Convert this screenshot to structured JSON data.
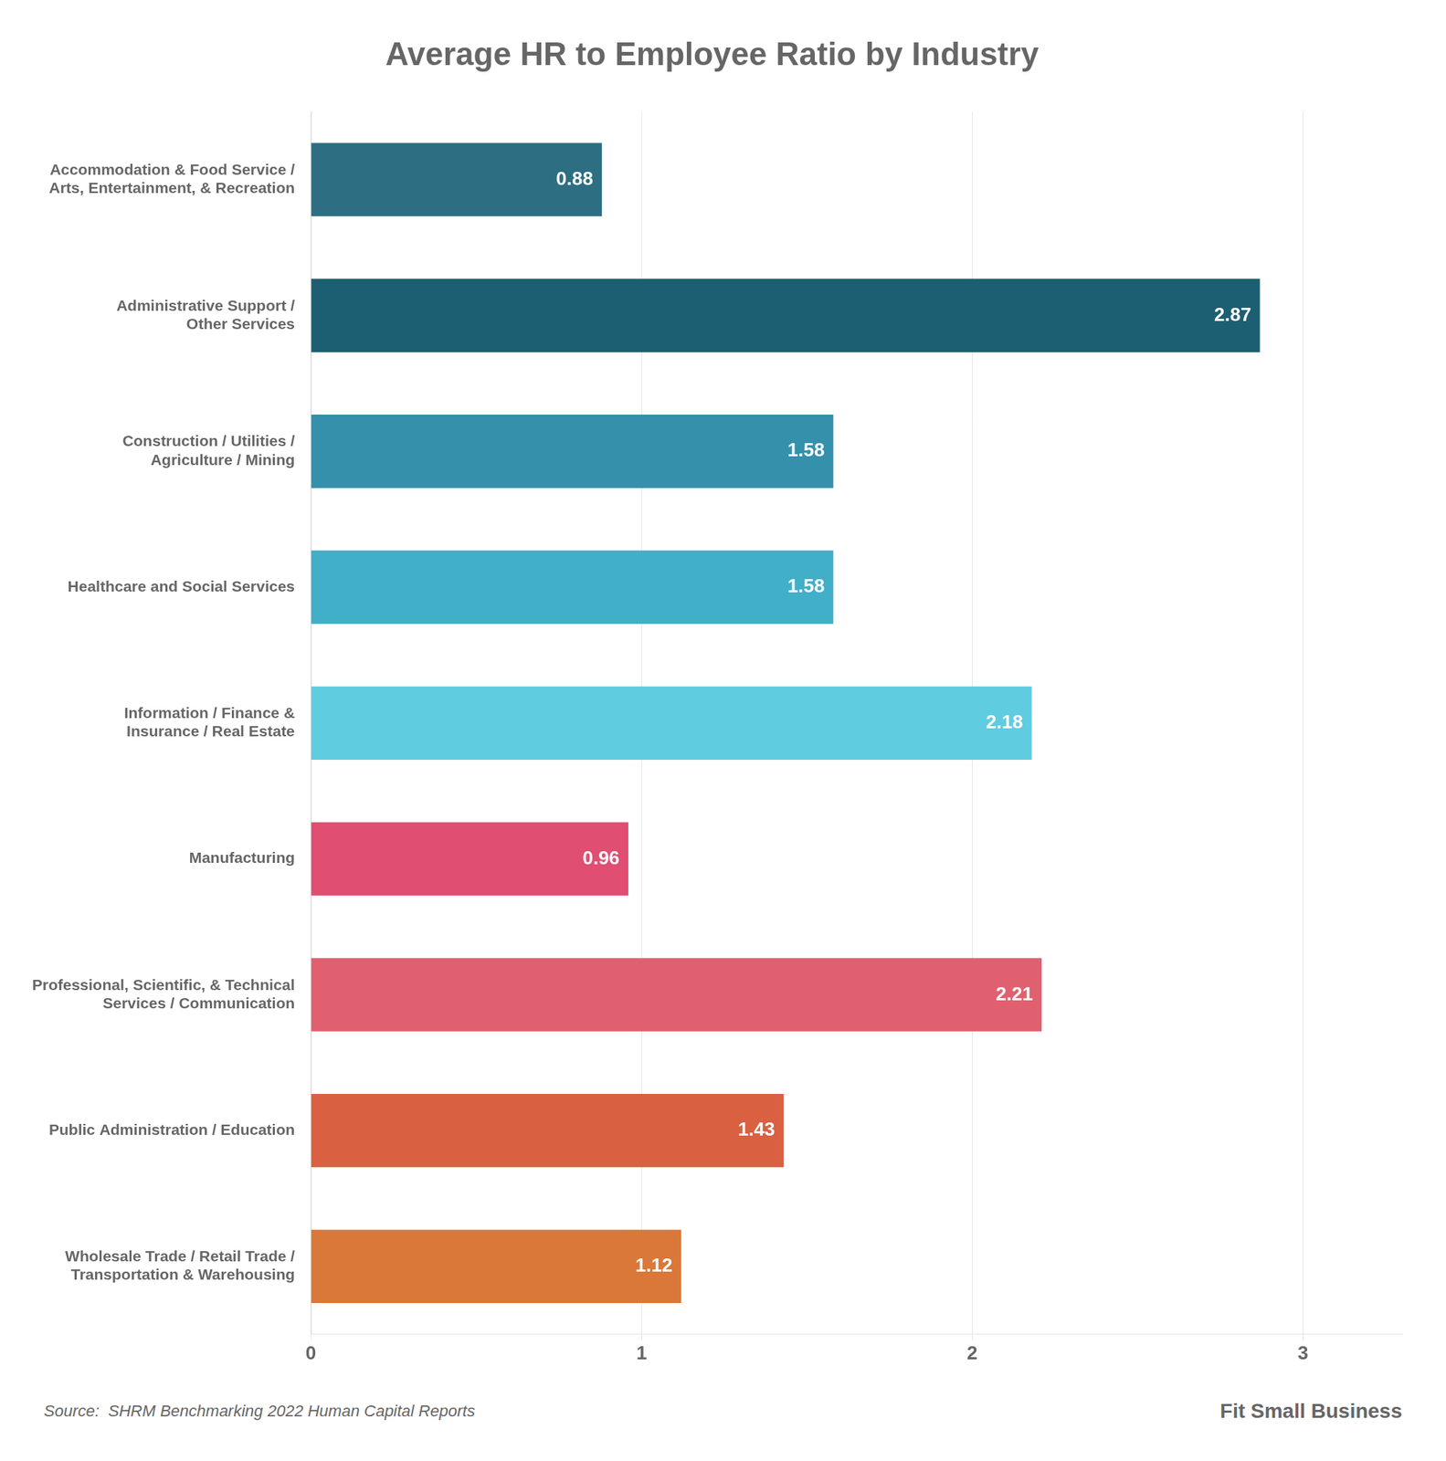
{
  "chart_data": {
    "type": "bar",
    "orientation": "horizontal",
    "title": "Average HR to Employee Ratio by Industry",
    "categories": [
      "Accommodation & Food Service /\nArts, Entertainment, & Recreation",
      "Administrative Support /\nOther Services",
      "Construction / Utilities /\nAgriculture / Mining",
      "Healthcare and Social Services",
      "Information / Finance &\nInsurance / Real Estate",
      "Manufacturing",
      "Professional, Scientific, & Technical\nServices / Communication",
      "Public Administration / Education",
      "Wholesale Trade / Retail Trade /\nTransportation & Warehousing"
    ],
    "values": [
      0.88,
      2.87,
      1.58,
      1.58,
      2.18,
      0.96,
      2.21,
      1.43,
      1.12
    ],
    "colors": [
      "#2d6e82",
      "#1d5f72",
      "#3590ac",
      "#42afc8",
      "#60cce0",
      "#e04e72",
      "#e06070",
      "#d96040",
      "#d97838"
    ],
    "xlim": [
      0,
      3.3
    ],
    "xticks": [
      0,
      1,
      2,
      3
    ],
    "grid": true,
    "data_labels": true,
    "annotations": [
      "Source:  SHRM Benchmarking 2022 Human Capital Reports",
      "Fit Small Business"
    ]
  }
}
